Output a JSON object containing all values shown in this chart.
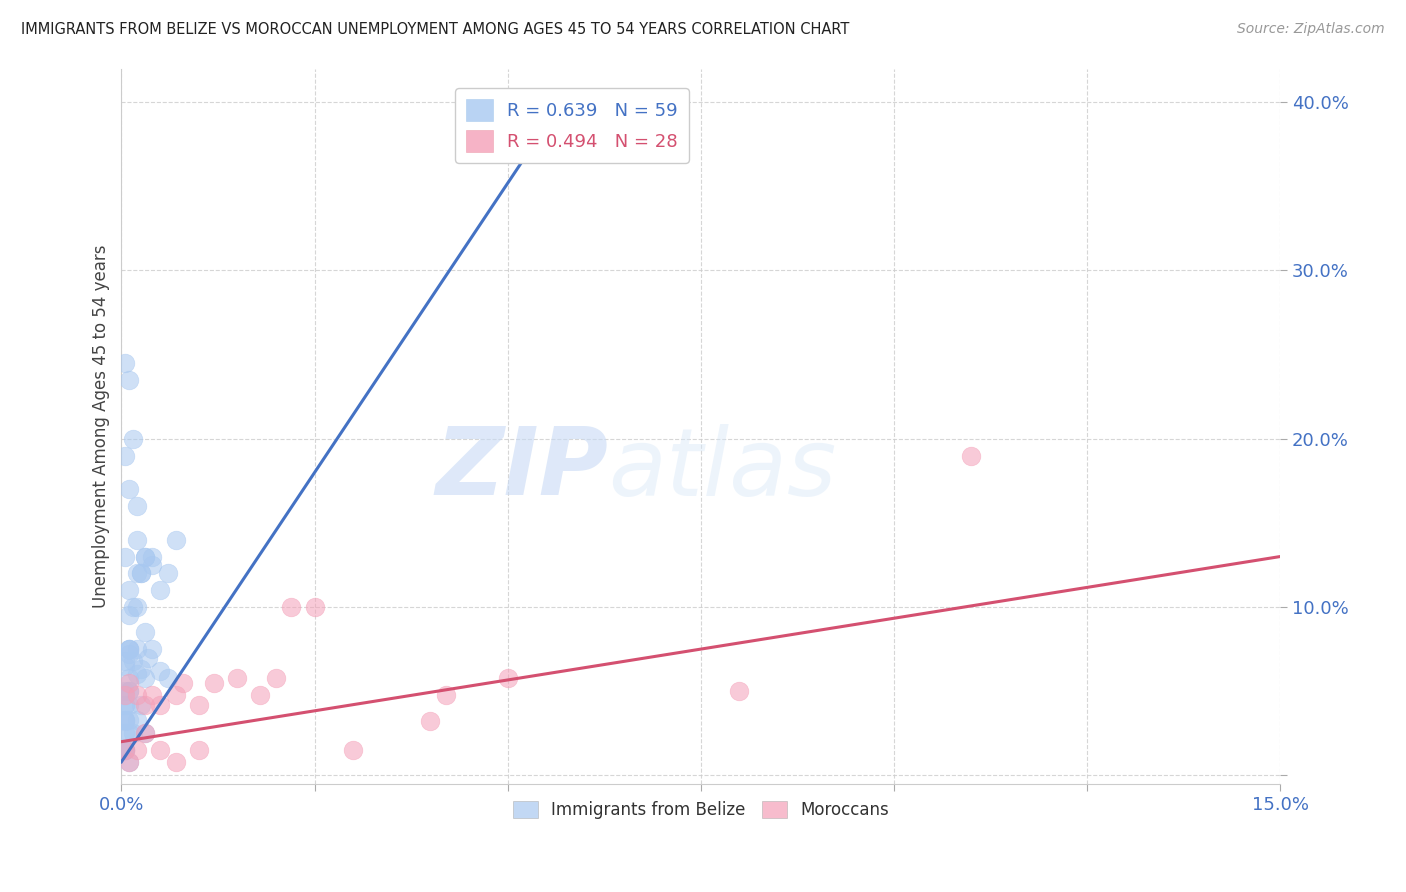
{
  "title": "IMMIGRANTS FROM BELIZE VS MOROCCAN UNEMPLOYMENT AMONG AGES 45 TO 54 YEARS CORRELATION CHART",
  "source": "Source: ZipAtlas.com",
  "ylabel": "Unemployment Among Ages 45 to 54 years",
  "xlim": [
    0.0,
    0.15
  ],
  "ylim": [
    -0.005,
    0.42
  ],
  "xticks": [
    0.0,
    0.025,
    0.05,
    0.075,
    0.1,
    0.125,
    0.15
  ],
  "yticks": [
    0.0,
    0.1,
    0.2,
    0.3,
    0.4
  ],
  "legend_blue_R": "0.639",
  "legend_blue_N": "59",
  "legend_pink_R": "0.494",
  "legend_pink_N": "28",
  "blue_color": "#a8c8f0",
  "pink_color": "#f4a0b8",
  "blue_line_color": "#4472c4",
  "pink_line_color": "#d45070",
  "watermark_zip": "ZIP",
  "watermark_atlas": "atlas",
  "blue_scatter_x": [
    0.0005,
    0.001,
    0.0015,
    0.002,
    0.0025,
    0.003,
    0.0035,
    0.004,
    0.005,
    0.006,
    0.0005,
    0.001,
    0.0015,
    0.002,
    0.0025,
    0.003,
    0.004,
    0.005,
    0.006,
    0.007,
    0.0005,
    0.001,
    0.0015,
    0.002,
    0.0005,
    0.001,
    0.002,
    0.003,
    0.004,
    0.0025,
    0.0005,
    0.001,
    0.0015,
    0.002,
    0.0025,
    0.003,
    0.0005,
    0.001,
    0.0005,
    0.001,
    0.0005,
    0.001,
    0.0005,
    0.001,
    0.0005,
    0.001,
    0.002,
    0.0005,
    0.001,
    0.0005,
    0.001,
    0.002,
    0.003,
    0.001,
    0.0005,
    0.001,
    0.0005,
    0.001,
    0.0005
  ],
  "blue_scatter_y": [
    0.065,
    0.072,
    0.068,
    0.075,
    0.063,
    0.058,
    0.07,
    0.075,
    0.062,
    0.058,
    0.13,
    0.11,
    0.1,
    0.14,
    0.12,
    0.13,
    0.125,
    0.11,
    0.12,
    0.14,
    0.19,
    0.17,
    0.2,
    0.16,
    0.245,
    0.235,
    0.12,
    0.13,
    0.13,
    0.12,
    0.033,
    0.042,
    0.025,
    0.033,
    0.042,
    0.025,
    0.05,
    0.058,
    0.042,
    0.05,
    0.015,
    0.025,
    0.015,
    0.008,
    0.068,
    0.075,
    0.06,
    0.033,
    0.075,
    0.032,
    0.095,
    0.1,
    0.085,
    0.075,
    0.042,
    0.05,
    0.025,
    0.033,
    0.015
  ],
  "pink_scatter_x": [
    0.0005,
    0.001,
    0.002,
    0.003,
    0.004,
    0.005,
    0.007,
    0.008,
    0.01,
    0.012,
    0.015,
    0.018,
    0.02,
    0.022,
    0.025,
    0.03,
    0.04,
    0.042,
    0.05,
    0.08,
    0.0005,
    0.001,
    0.002,
    0.003,
    0.005,
    0.007,
    0.01,
    0.11
  ],
  "pink_scatter_y": [
    0.048,
    0.055,
    0.048,
    0.042,
    0.048,
    0.042,
    0.048,
    0.055,
    0.042,
    0.055,
    0.058,
    0.048,
    0.058,
    0.1,
    0.1,
    0.015,
    0.032,
    0.048,
    0.058,
    0.05,
    0.015,
    0.008,
    0.015,
    0.025,
    0.015,
    0.008,
    0.015,
    0.19
  ],
  "blue_line_x": [
    0.0,
    0.057
  ],
  "blue_line_y": [
    0.008,
    0.4
  ],
  "pink_line_x": [
    0.0,
    0.15
  ],
  "pink_line_y": [
    0.02,
    0.13
  ]
}
